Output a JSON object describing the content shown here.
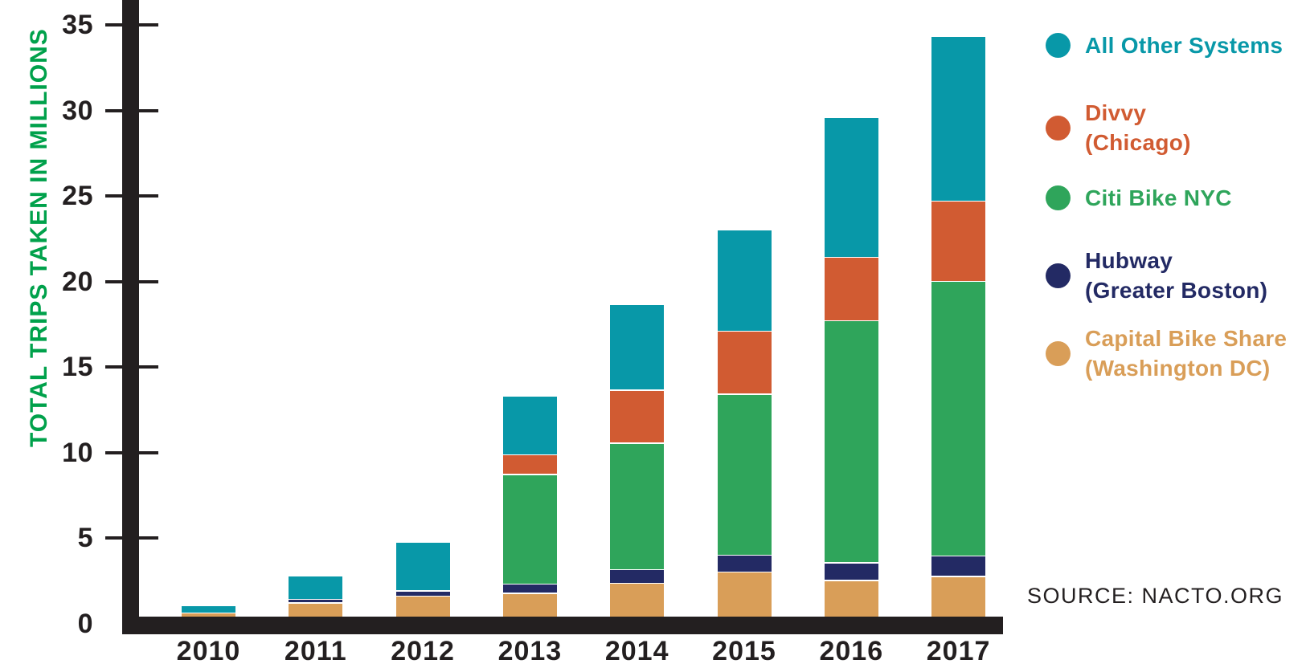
{
  "chart_data": {
    "type": "bar",
    "stacked": true,
    "title": "",
    "xlabel": "",
    "ylabel": "TOTAL TRIPS TAKEN IN MILLIONS",
    "ylabel_color": "#00a14b",
    "ylim": [
      0,
      35
    ],
    "y_ticks": [
      0,
      5,
      10,
      15,
      20,
      25,
      30,
      35
    ],
    "grid": false,
    "legend_position": "right",
    "axis_color": "#231f20",
    "categories": [
      "2010",
      "2011",
      "2012",
      "2013",
      "2014",
      "2015",
      "2016",
      "2017"
    ],
    "series": [
      {
        "id": "capital-bike-share",
        "name": "Capital Bike Share (Washington DC)",
        "legend_lines": [
          "Capital Bike Share",
          "(Washington DC)"
        ],
        "color": "#d99e58",
        "values": [
          0.6,
          1.2,
          1.6,
          1.75,
          2.35,
          3.0,
          2.5,
          2.75
        ]
      },
      {
        "id": "hubway",
        "name": "Hubway (Greater Boston)",
        "legend_lines": [
          "Hubway",
          "(Greater Boston)"
        ],
        "color": "#232a64",
        "values": [
          0,
          0.2,
          0.3,
          0.55,
          0.8,
          1.0,
          1.05,
          1.2
        ]
      },
      {
        "id": "citi-bike-nyc",
        "name": "Citi Bike NYC",
        "legend_lines": [
          "Citi Bike NYC"
        ],
        "color": "#2fa55b",
        "values": [
          0,
          0,
          0,
          6.4,
          7.4,
          9.4,
          14.15,
          16.05
        ]
      },
      {
        "id": "divvy",
        "name": "Divvy (Chicago)",
        "legend_lines": [
          "Divvy",
          "(Chicago)"
        ],
        "color": "#d15b32",
        "values": [
          0,
          0,
          0,
          1.15,
          3.1,
          3.7,
          3.7,
          4.7
        ]
      },
      {
        "id": "all-other-systems",
        "name": "All Other Systems",
        "legend_lines": [
          "All Other Systems"
        ],
        "color": "#0898a8",
        "values": [
          0.45,
          1.4,
          2.85,
          3.45,
          5.0,
          5.9,
          8.2,
          9.65
        ]
      }
    ],
    "totals": [
      1.05,
      2.8,
      4.75,
      13.3,
      18.65,
      23.0,
      29.6,
      34.35
    ],
    "legend_order": [
      "all-other-systems",
      "divvy",
      "citi-bike-nyc",
      "hubway",
      "capital-bike-share"
    ]
  },
  "source": "SOURCE: NACTO.ORG"
}
